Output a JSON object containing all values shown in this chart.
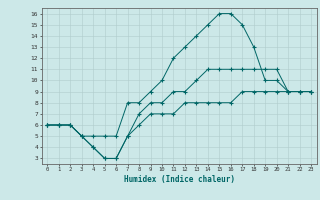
{
  "xlabel": "Humidex (Indice chaleur)",
  "ylabel": "",
  "bg_color": "#cce8e8",
  "grid_color": "#b0cccc",
  "line_color": "#006666",
  "xlim": [
    -0.5,
    23.5
  ],
  "ylim": [
    2.5,
    16.5
  ],
  "xticks": [
    0,
    1,
    2,
    3,
    4,
    5,
    6,
    7,
    8,
    9,
    10,
    11,
    12,
    13,
    14,
    15,
    16,
    17,
    18,
    19,
    20,
    21,
    22,
    23
  ],
  "yticks": [
    3,
    4,
    5,
    6,
    7,
    8,
    9,
    10,
    11,
    12,
    13,
    14,
    15,
    16
  ],
  "series": [
    {
      "x": [
        0,
        1,
        2,
        3,
        4,
        5,
        6,
        7,
        8,
        9,
        10,
        11,
        12,
        13,
        14,
        15,
        16,
        17,
        18,
        19,
        20,
        21,
        22,
        23
      ],
      "y": [
        6,
        6,
        6,
        5,
        5,
        5,
        5,
        8,
        8,
        9,
        10,
        12,
        13,
        14,
        15,
        16,
        16,
        15,
        13,
        10,
        10,
        9,
        9,
        9
      ]
    },
    {
      "x": [
        0,
        1,
        2,
        3,
        4,
        5,
        6,
        7,
        8,
        9,
        10,
        11,
        12,
        13,
        14,
        15,
        16,
        17,
        18,
        19,
        20,
        21,
        22,
        23
      ],
      "y": [
        6,
        6,
        6,
        5,
        4,
        3,
        3,
        5,
        7,
        8,
        8,
        9,
        9,
        10,
        11,
        11,
        11,
        11,
        11,
        11,
        11,
        9,
        9,
        9
      ]
    },
    {
      "x": [
        0,
        1,
        2,
        3,
        4,
        5,
        6,
        7,
        8,
        9,
        10,
        11,
        12,
        13,
        14,
        15,
        16,
        17,
        18,
        19,
        20,
        21,
        22,
        23
      ],
      "y": [
        6,
        6,
        6,
        5,
        4,
        3,
        3,
        5,
        6,
        7,
        7,
        7,
        8,
        8,
        8,
        8,
        8,
        9,
        9,
        9,
        9,
        9,
        9,
        9
      ]
    }
  ]
}
